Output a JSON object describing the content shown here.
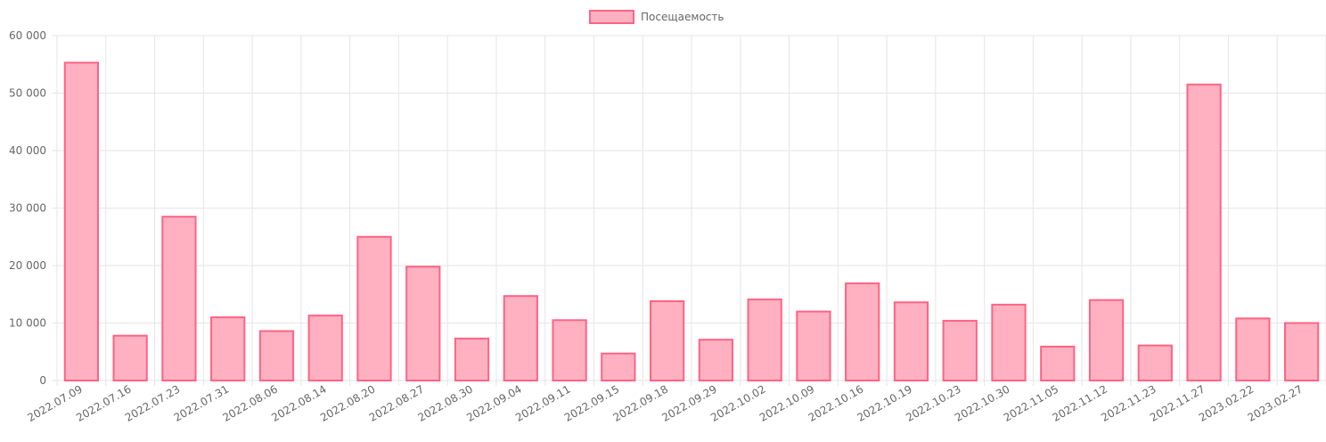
{
  "chart_data": {
    "type": "bar",
    "legend": {
      "label": "Посещаемость",
      "position": "top"
    },
    "colors": {
      "bar_fill": "#ffb1c1",
      "bar_stroke": "#ff6384",
      "grid": "#e6e6e6",
      "text": "#666666"
    },
    "ylim": [
      0,
      60000
    ],
    "yticks": [
      0,
      10000,
      20000,
      30000,
      40000,
      50000,
      60000
    ],
    "ytick_labels": [
      "0",
      "10 000",
      "20 000",
      "30 000",
      "40 000",
      "50 000",
      "60 000"
    ],
    "grid": true,
    "categories": [
      "2022.07.09",
      "2022.07.16",
      "2022.07.23",
      "2022.07.31",
      "2022.08.06",
      "2022.08.14",
      "2022.08.20",
      "2022.08.27",
      "2022.08.30",
      "2022.09.04",
      "2022.09.11",
      "2022.09.15",
      "2022.09.18",
      "2022.09.29",
      "2022.10.02",
      "2022.10.09",
      "2022.10.16",
      "2022.10.19",
      "2022.10.23",
      "2022.10.30",
      "2022.11.05",
      "2022.11.12",
      "2022.11.23",
      "2022.11.27",
      "2023.02.22",
      "2023.02.27"
    ],
    "values": [
      55300,
      7800,
      28500,
      11000,
      8600,
      11300,
      25000,
      19800,
      7300,
      14700,
      10500,
      4700,
      13800,
      7100,
      14100,
      12000,
      16900,
      13600,
      10400,
      13200,
      5900,
      14000,
      6100,
      51500,
      10800,
      10000
    ]
  }
}
